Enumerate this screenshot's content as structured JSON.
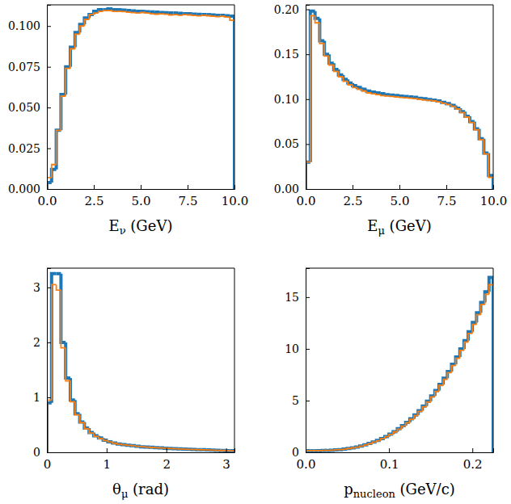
{
  "chart_data": [
    {
      "type": "histogram",
      "xlabel": "Eν (GeV)",
      "xlim": [
        0,
        10
      ],
      "ylim": [
        0,
        0.113
      ],
      "xticks": [
        {
          "value": 0,
          "label": "0.0"
        },
        {
          "value": 2.5,
          "label": "2.5"
        },
        {
          "value": 5,
          "label": "5.0"
        },
        {
          "value": 7.5,
          "label": "7.5"
        },
        {
          "value": 10,
          "label": "10.0"
        }
      ],
      "yticks": [
        {
          "value": 0,
          "label": "0.000"
        },
        {
          "value": 0.025,
          "label": "0.025"
        },
        {
          "value": 0.05,
          "label": "0.050"
        },
        {
          "value": 0.075,
          "label": "0.075"
        },
        {
          "value": 0.1,
          "label": "0.100"
        }
      ],
      "bins": [
        0,
        0.25,
        0.5,
        0.75,
        1,
        1.25,
        1.5,
        1.75,
        2,
        2.25,
        2.5,
        2.75,
        3,
        3.25,
        3.5,
        3.75,
        4,
        4.25,
        4.5,
        4.75,
        5,
        5.25,
        5.5,
        5.75,
        6,
        6.25,
        6.5,
        6.75,
        7,
        7.25,
        7.5,
        7.75,
        8,
        8.25,
        8.5,
        8.75,
        9,
        9.25,
        9.5,
        9.75,
        10
      ],
      "series": [
        {
          "color": "#1f77b4",
          "values": [
            0.004,
            0.012,
            0.036,
            0.058,
            0.075,
            0.087,
            0.096,
            0.101,
            0.105,
            0.107,
            0.109,
            0.11,
            0.11,
            0.1105,
            0.11,
            0.11,
            0.1098,
            0.1095,
            0.1093,
            0.109,
            0.109,
            0.1088,
            0.1087,
            0.1085,
            0.1083,
            0.1082,
            0.108,
            0.108,
            0.1078,
            0.1076,
            0.1075,
            0.1073,
            0.1072,
            0.107,
            0.107,
            0.1068,
            0.1066,
            0.1065,
            0.1063,
            0.106
          ]
        },
        {
          "color": "#ff7f0e",
          "values": [
            0.007,
            0.015,
            0.036,
            0.057,
            0.074,
            0.086,
            0.095,
            0.1,
            0.104,
            0.107,
            0.108,
            0.109,
            0.1095,
            0.1095,
            0.109,
            0.109,
            0.1088,
            0.1085,
            0.1082,
            0.108,
            0.1083,
            0.108,
            0.1075,
            0.1073,
            0.1075,
            0.1072,
            0.1068,
            0.107,
            0.1066,
            0.107,
            0.1068,
            0.1065,
            0.1062,
            0.1066,
            0.1063,
            0.106,
            0.1058,
            0.106,
            0.1055,
            0.1035
          ]
        }
      ]
    },
    {
      "type": "histogram",
      "xlabel": "Eμ (GeV)",
      "xlim": [
        0,
        10
      ],
      "ylim": [
        0,
        0.205
      ],
      "xticks": [
        {
          "value": 0,
          "label": "0.0"
        },
        {
          "value": 2.5,
          "label": "2.5"
        },
        {
          "value": 5,
          "label": "5.0"
        },
        {
          "value": 7.5,
          "label": "7.5"
        },
        {
          "value": 10,
          "label": "10.0"
        }
      ],
      "yticks": [
        {
          "value": 0,
          "label": "0.00"
        },
        {
          "value": 0.05,
          "label": "0.05"
        },
        {
          "value": 0.1,
          "label": "0.10"
        },
        {
          "value": 0.15,
          "label": "0.15"
        },
        {
          "value": 0.2,
          "label": "0.20"
        }
      ],
      "bins": [
        0,
        0.25,
        0.5,
        0.75,
        1,
        1.25,
        1.5,
        1.75,
        2,
        2.25,
        2.5,
        2.75,
        3,
        3.25,
        3.5,
        3.75,
        4,
        4.25,
        4.5,
        4.75,
        5,
        5.25,
        5.5,
        5.75,
        6,
        6.25,
        6.5,
        6.75,
        7,
        7.25,
        7.5,
        7.75,
        8,
        8.25,
        8.5,
        8.75,
        9,
        9.25,
        9.5,
        9.75,
        10
      ],
      "series": [
        {
          "color": "#1f77b4",
          "values": [
            0.03,
            0.198,
            0.19,
            0.165,
            0.15,
            0.14,
            0.133,
            0.127,
            0.122,
            0.118,
            0.115,
            0.113,
            0.111,
            0.109,
            0.108,
            0.107,
            0.106,
            0.105,
            0.1045,
            0.104,
            0.1035,
            0.103,
            0.1025,
            0.102,
            0.101,
            0.1005,
            0.0995,
            0.099,
            0.098,
            0.0965,
            0.095,
            0.093,
            0.09,
            0.086,
            0.081,
            0.075,
            0.067,
            0.056,
            0.04,
            0.015
          ]
        },
        {
          "color": "#ff7f0e",
          "values": [
            0.03,
            0.193,
            0.185,
            0.162,
            0.148,
            0.138,
            0.131,
            0.125,
            0.12,
            0.116,
            0.113,
            0.111,
            0.109,
            0.107,
            0.106,
            0.105,
            0.104,
            0.1035,
            0.103,
            0.1025,
            0.102,
            0.1015,
            0.101,
            0.1005,
            0.1,
            0.099,
            0.0985,
            0.098,
            0.097,
            0.0955,
            0.094,
            0.092,
            0.089,
            0.085,
            0.08,
            0.074,
            0.066,
            0.055,
            0.039,
            0.013
          ]
        }
      ]
    },
    {
      "type": "histogram",
      "xlabel": "θμ (rad)",
      "xlim": [
        0,
        3.1416
      ],
      "ylim": [
        0,
        3.35
      ],
      "xticks": [
        0,
        1,
        2,
        3
      ],
      "yticks": [
        0,
        1,
        2,
        3
      ],
      "bins": [
        0,
        0.0785,
        0.1571,
        0.2356,
        0.3142,
        0.3927,
        0.4712,
        0.5498,
        0.6283,
        0.7069,
        0.7854,
        0.8639,
        0.9425,
        1.021,
        1.0996,
        1.1781,
        1.2566,
        1.3352,
        1.4137,
        1.4923,
        1.5708,
        1.6493,
        1.7279,
        1.8064,
        1.885,
        1.9635,
        2.042,
        2.1206,
        2.1991,
        2.2777,
        2.3562,
        2.4347,
        2.5133,
        2.5918,
        2.6704,
        2.7489,
        2.8274,
        2.906,
        2.9845,
        3.0631,
        3.1416
      ],
      "series": [
        {
          "color": "#1f77b4",
          "values": [
            0.9,
            3.25,
            3.25,
            2.0,
            1.35,
            0.95,
            0.7,
            0.55,
            0.44,
            0.36,
            0.3,
            0.26,
            0.22,
            0.19,
            0.17,
            0.15,
            0.14,
            0.13,
            0.12,
            0.11,
            0.1,
            0.095,
            0.09,
            0.085,
            0.08,
            0.075,
            0.07,
            0.066,
            0.062,
            0.058,
            0.055,
            0.052,
            0.049,
            0.046,
            0.043,
            0.04,
            0.037,
            0.034,
            0.031,
            0.028
          ]
        },
        {
          "color": "#ff7f0e",
          "values": [
            0.95,
            3.05,
            2.95,
            1.9,
            1.3,
            0.92,
            0.68,
            0.54,
            0.43,
            0.35,
            0.29,
            0.25,
            0.215,
            0.19,
            0.165,
            0.15,
            0.138,
            0.128,
            0.118,
            0.108,
            0.1,
            0.093,
            0.088,
            0.083,
            0.078,
            0.074,
            0.069,
            0.065,
            0.061,
            0.057,
            0.054,
            0.051,
            0.048,
            0.045,
            0.042,
            0.039,
            0.036,
            0.033,
            0.03,
            0.027
          ]
        }
      ]
    },
    {
      "type": "histogram",
      "xlabel": "pnucleon (GeV/c)",
      "xlim": [
        0,
        0.225
      ],
      "ylim": [
        0,
        17.8
      ],
      "xticks": [
        {
          "value": 0,
          "label": "0.0"
        },
        {
          "value": 0.1,
          "label": "0.1"
        },
        {
          "value": 0.2,
          "label": "0.2"
        }
      ],
      "yticks": [
        0,
        5,
        10,
        15
      ],
      "bins": [
        0,
        0.005,
        0.01,
        0.015,
        0.02,
        0.025,
        0.03,
        0.035,
        0.04,
        0.045,
        0.05,
        0.055,
        0.06,
        0.065,
        0.07,
        0.075,
        0.08,
        0.085,
        0.09,
        0.095,
        0.1,
        0.105,
        0.11,
        0.115,
        0.12,
        0.125,
        0.13,
        0.135,
        0.14,
        0.145,
        0.15,
        0.155,
        0.16,
        0.165,
        0.17,
        0.175,
        0.18,
        0.185,
        0.19,
        0.195,
        0.2,
        0.205,
        0.21,
        0.215,
        0.22,
        0.225
      ],
      "series": [
        {
          "color": "#1f77b4",
          "values": [
            0.15,
            0.15,
            0.15,
            0.16,
            0.17,
            0.18,
            0.2,
            0.23,
            0.26,
            0.31,
            0.37,
            0.43,
            0.51,
            0.61,
            0.72,
            0.85,
            0.99,
            1.15,
            1.33,
            1.53,
            1.76,
            2.0,
            2.28,
            2.57,
            2.89,
            3.24,
            3.62,
            4.03,
            4.47,
            4.94,
            5.45,
            5.98,
            6.56,
            7.17,
            7.81,
            8.5,
            9.22,
            9.99,
            10.8,
            11.65,
            12.55,
            13.49,
            14.48,
            15.51,
            16.9
          ]
        },
        {
          "color": "#ff7f0e",
          "values": [
            0.16,
            0.16,
            0.16,
            0.17,
            0.18,
            0.19,
            0.21,
            0.24,
            0.27,
            0.31,
            0.37,
            0.43,
            0.5,
            0.6,
            0.71,
            0.84,
            0.98,
            1.13,
            1.31,
            1.51,
            1.73,
            1.97,
            2.24,
            2.53,
            2.85,
            3.19,
            3.56,
            3.96,
            4.4,
            4.86,
            5.36,
            5.89,
            6.46,
            7.06,
            7.7,
            8.38,
            9.09,
            9.85,
            10.65,
            11.49,
            12.37,
            13.3,
            14.27,
            15.28,
            16.2
          ]
        }
      ]
    }
  ]
}
